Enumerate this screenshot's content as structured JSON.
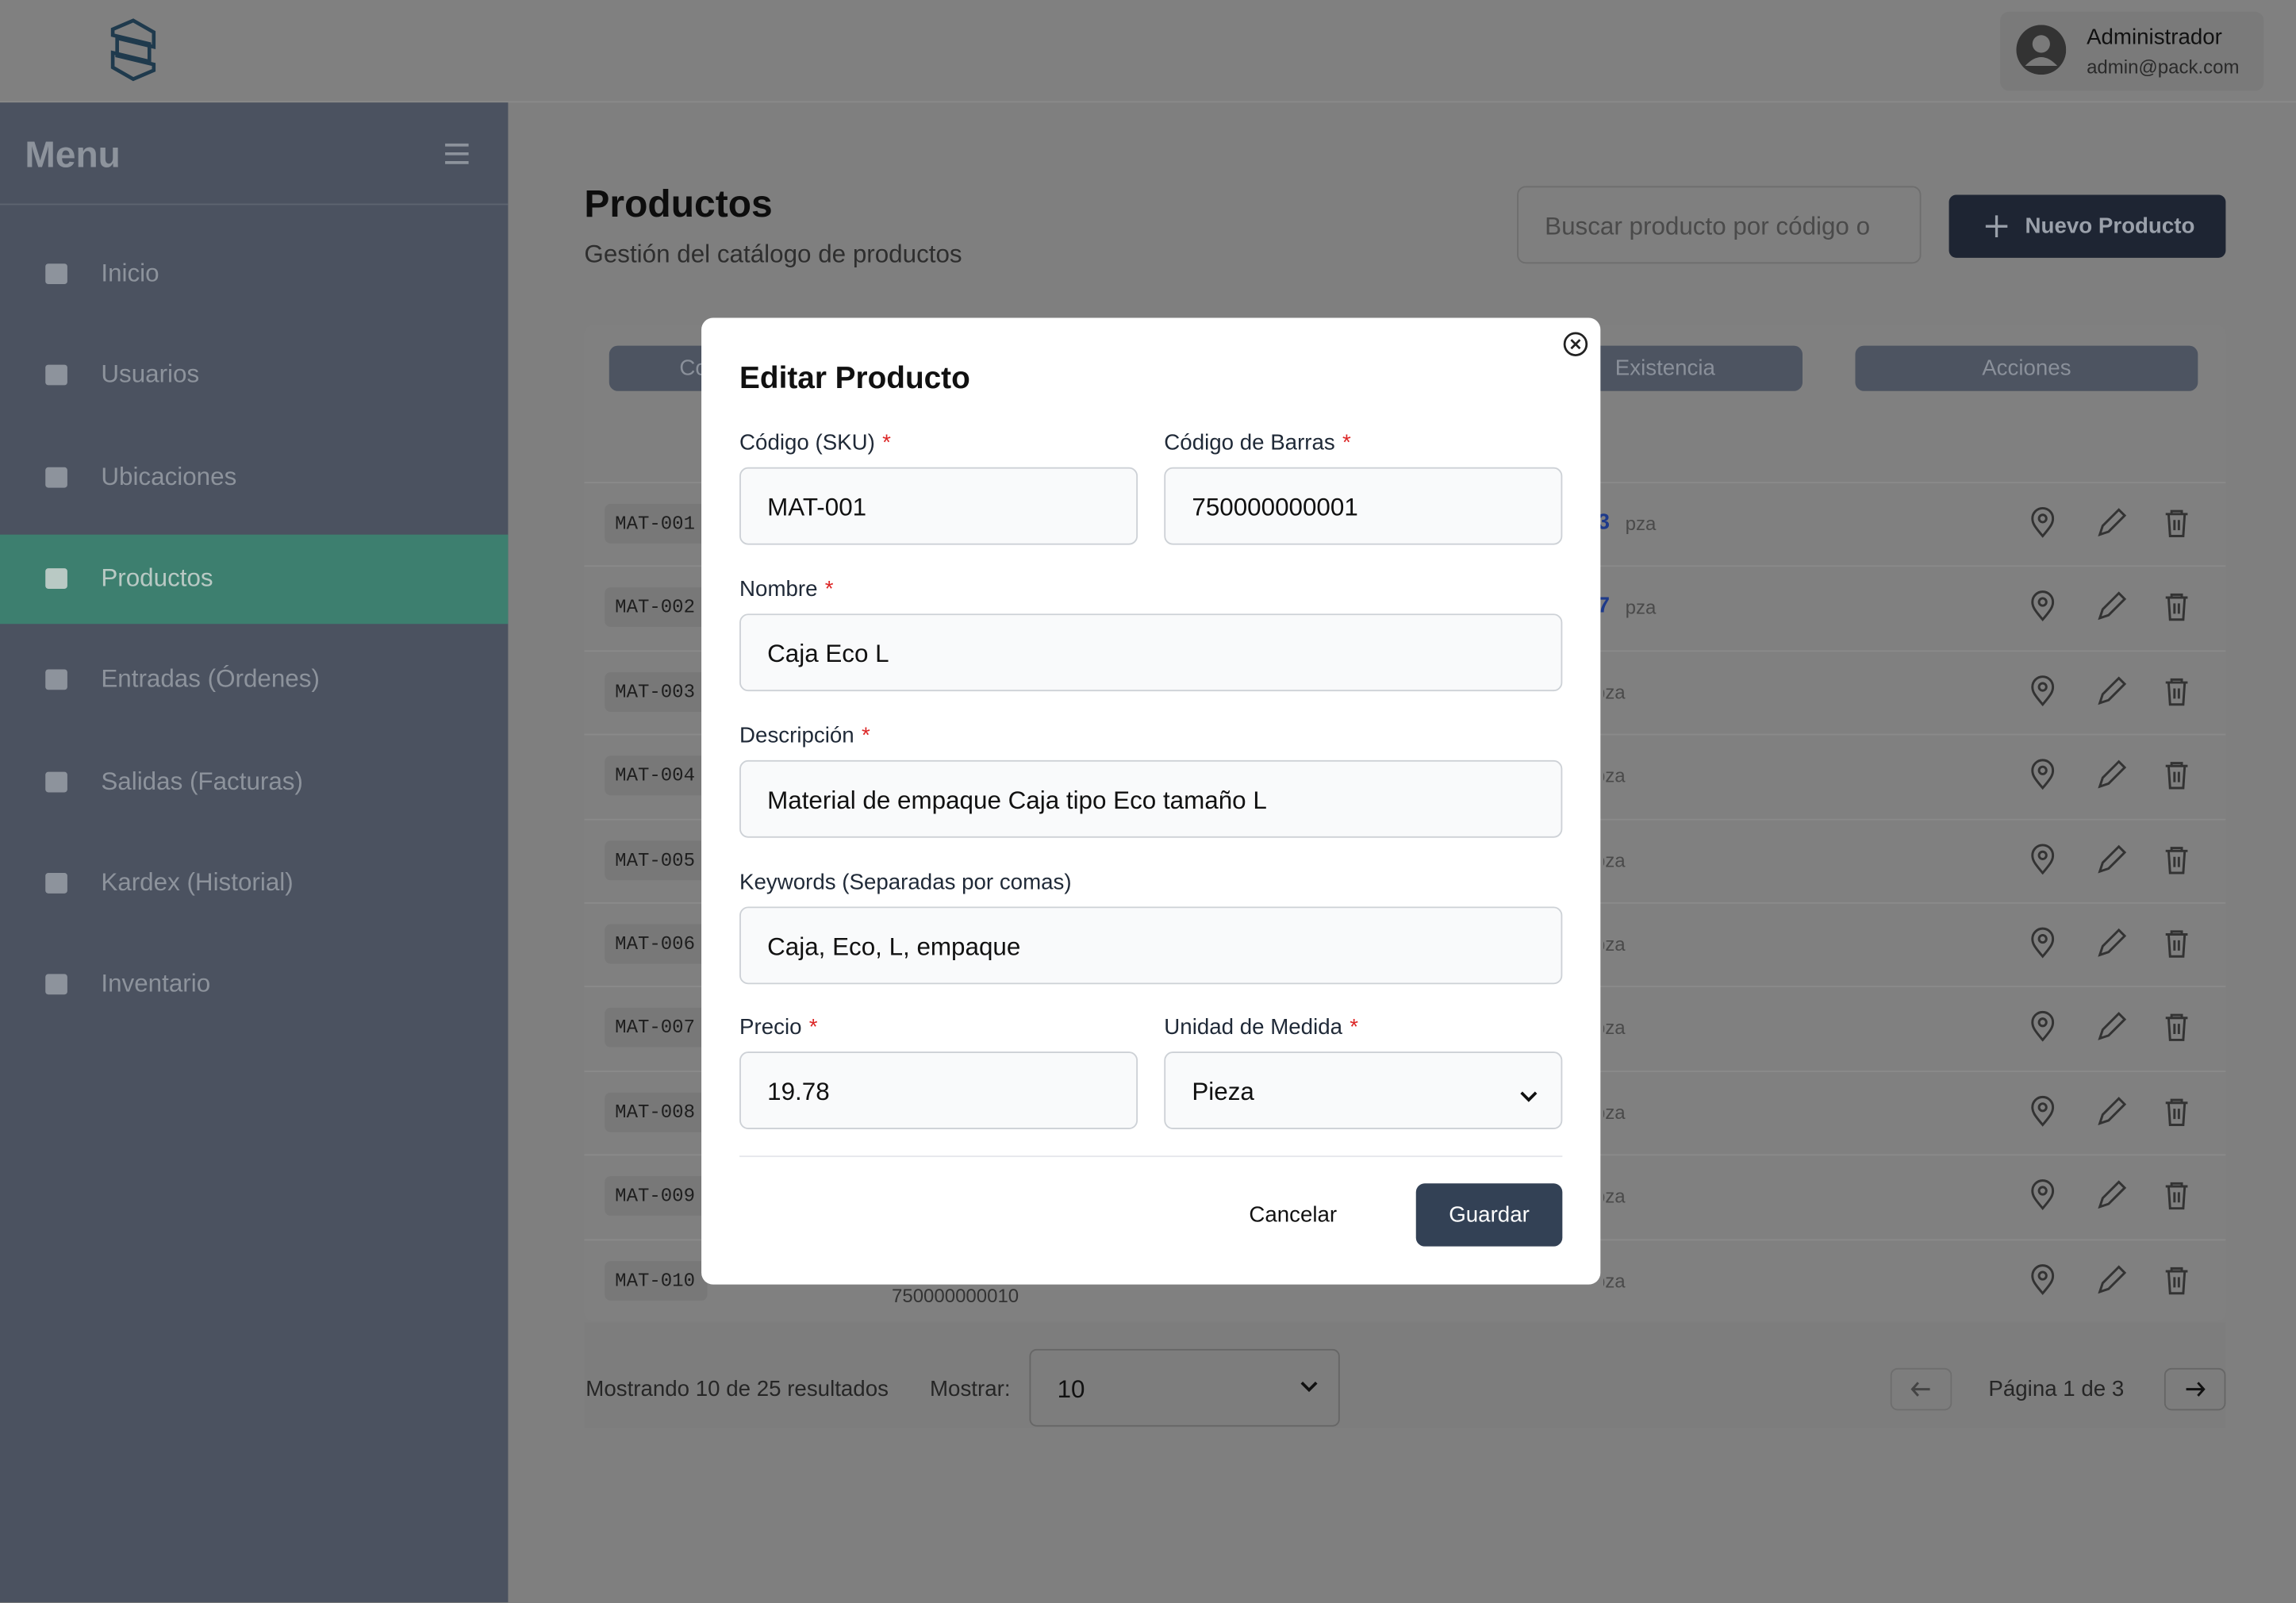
{
  "header": {
    "user_name": "Administrador",
    "user_email": "admin@pack.com"
  },
  "sidebar": {
    "title": "Menu",
    "items": [
      "Inicio",
      "Usuarios",
      "Ubicaciones",
      "Productos",
      "Entradas (Órdenes)",
      "Salidas (Facturas)",
      "Kardex (Historial)",
      "Inventario"
    ],
    "active": 3
  },
  "page": {
    "title": "Productos",
    "subtitle": "Gestión del catálogo de productos",
    "search_placeholder": "Buscar producto por código o",
    "new_button": "Nuevo Producto"
  },
  "table": {
    "headers": [
      "Co",
      "Existencia",
      "Acciones"
    ],
    "rows": [
      {
        "code": "MAT-001",
        "stock": "3",
        "unit": "pza"
      },
      {
        "code": "MAT-002",
        "stock": "7",
        "unit": "pza"
      },
      {
        "code": "MAT-003",
        "unit": "pza"
      },
      {
        "code": "MAT-004",
        "unit": "pza"
      },
      {
        "code": "MAT-005",
        "unit": "pza"
      },
      {
        "code": "MAT-006",
        "unit": "pza"
      },
      {
        "code": "MAT-007",
        "unit": "pza"
      },
      {
        "code": "MAT-008",
        "unit": "pza"
      },
      {
        "code": "MAT-009",
        "unit": "pza"
      },
      {
        "code": "MAT-010",
        "unit": "pza",
        "barcode": "750000000010"
      }
    ]
  },
  "pagination": {
    "summary": "Mostrando 10 de 25 resultados",
    "show_label": "Mostrar:",
    "page_size": "10",
    "page_info": "Página 1 de 3"
  },
  "modal": {
    "title": "Editar Producto",
    "required_mark": "*",
    "fields": [
      {
        "label": "Código (SKU)",
        "required": true,
        "value": "MAT-001"
      },
      {
        "label": "Código de Barras",
        "required": true,
        "value": "750000000001"
      },
      {
        "label": "Nombre",
        "required": true,
        "value": "Caja Eco L"
      },
      {
        "label": "Descripción",
        "required": true,
        "value": "Material de empaque Caja tipo Eco tamaño L"
      },
      {
        "label": "Keywords (Separadas por comas)",
        "required": false,
        "value": "Caja, Eco, L, empaque"
      },
      {
        "label": "Precio",
        "required": true,
        "value": "19.78"
      },
      {
        "label": "Unidad de Medida",
        "required": true,
        "value": "Pieza",
        "select": true
      }
    ],
    "cancel": "Cancelar",
    "save": "Guardar"
  }
}
